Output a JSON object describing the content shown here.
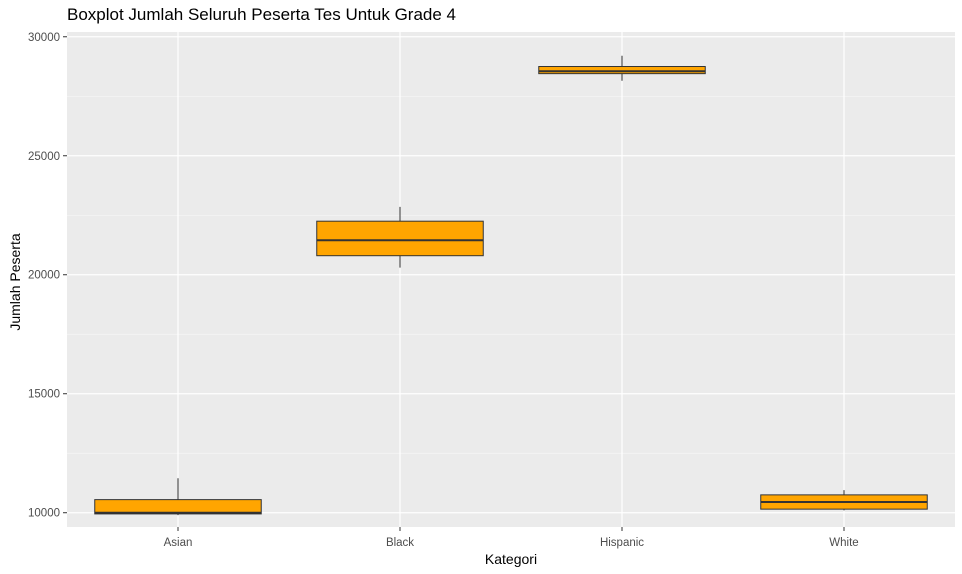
{
  "chart_data": {
    "type": "boxplot",
    "title": "Boxplot Jumlah Seluruh Peserta Tes Untuk Grade 4",
    "xlabel": "Kategori",
    "ylabel": "Jumlah Peserta",
    "categories": [
      "Asian",
      "Black",
      "Hispanic",
      "White"
    ],
    "boxes": [
      {
        "category": "Asian",
        "min": 9900,
        "q1": 9950,
        "median": 10000,
        "q3": 10550,
        "max": 11450
      },
      {
        "category": "Black",
        "min": 20300,
        "q1": 20800,
        "median": 21450,
        "q3": 22250,
        "max": 22850
      },
      {
        "category": "Hispanic",
        "min": 28150,
        "q1": 28450,
        "median": 28550,
        "q3": 28750,
        "max": 29200
      },
      {
        "category": "White",
        "min": 10100,
        "q1": 10150,
        "median": 10450,
        "q3": 10750,
        "max": 10950
      }
    ],
    "yticks": [
      10000,
      15000,
      20000,
      25000,
      30000
    ],
    "ytick_labels": [
      "10000",
      "15000",
      "20000",
      "25000",
      "30000"
    ],
    "ylim": [
      9400,
      30200
    ],
    "grid": true,
    "colors": {
      "panel": "#ebebeb",
      "grid_major": "#ffffff",
      "box_fill": "#ffa500",
      "box_stroke": "#333333"
    }
  }
}
